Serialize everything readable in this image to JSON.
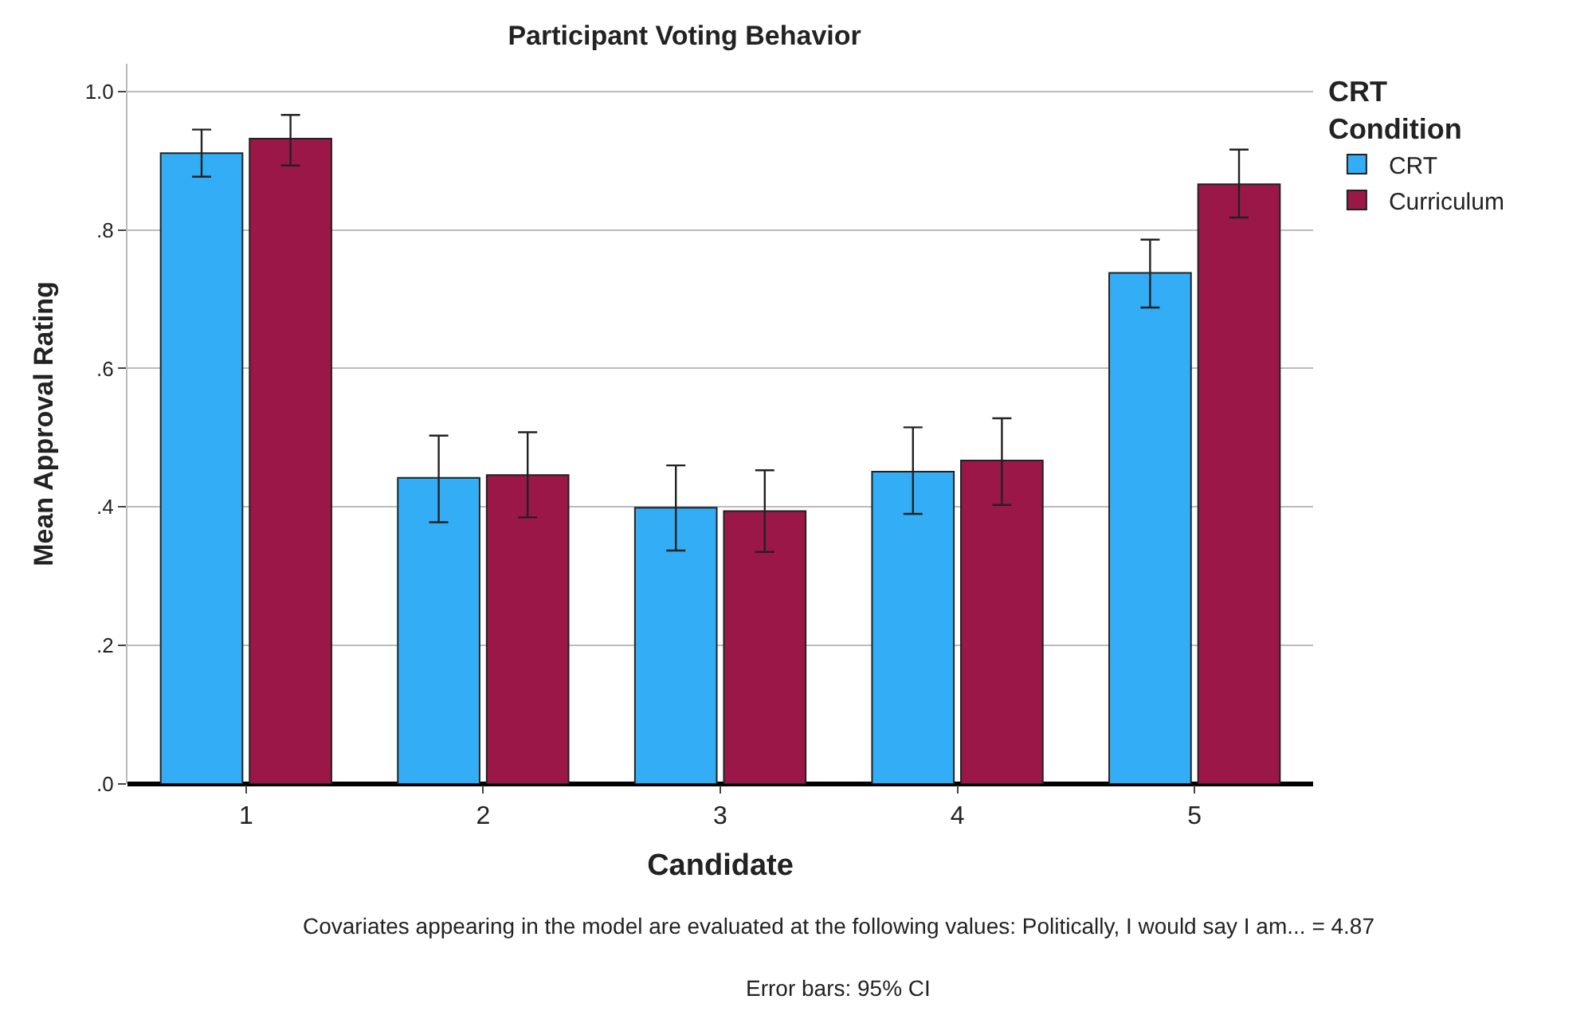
{
  "chart_data": {
    "type": "bar",
    "title": "Participant Voting Behavior",
    "xlabel": "Candidate",
    "ylabel": "Mean Approval Rating",
    "legend_title": "CRT Condition",
    "categories": [
      "1",
      "2",
      "3",
      "4",
      "5"
    ],
    "series": [
      {
        "name": "CRT",
        "color": "#33adf5",
        "values": [
          0.911,
          0.442,
          0.399,
          0.451,
          0.738
        ],
        "errors": [
          [
            0.877,
            0.945
          ],
          [
            0.378,
            0.503
          ],
          [
            0.337,
            0.46
          ],
          [
            0.39,
            0.515
          ],
          [
            0.688,
            0.786
          ]
        ]
      },
      {
        "name": "Curriculum",
        "color": "#9b1748",
        "values": [
          0.932,
          0.446,
          0.394,
          0.467,
          0.866
        ],
        "errors": [
          [
            0.893,
            0.966
          ],
          [
            0.385,
            0.508
          ],
          [
            0.335,
            0.453
          ],
          [
            0.403,
            0.528
          ],
          [
            0.818,
            0.916
          ]
        ]
      }
    ],
    "ylim": [
      0,
      1.04
    ],
    "yticks": [
      {
        "value": 0,
        "label": ".0"
      },
      {
        "value": 0.2,
        "label": ".2"
      },
      {
        "value": 0.4,
        "label": ".4"
      },
      {
        "value": 0.6,
        "label": ".6"
      },
      {
        "value": 0.8,
        "label": ".8"
      },
      {
        "value": 1.0,
        "label": "1.0"
      }
    ],
    "grid": "y",
    "legend": "top right",
    "annotations": [
      "Covariates appearing in the model are evaluated at the following values: Politically, I would say I am... = 4.87",
      "Error bars: 95% CI"
    ]
  }
}
